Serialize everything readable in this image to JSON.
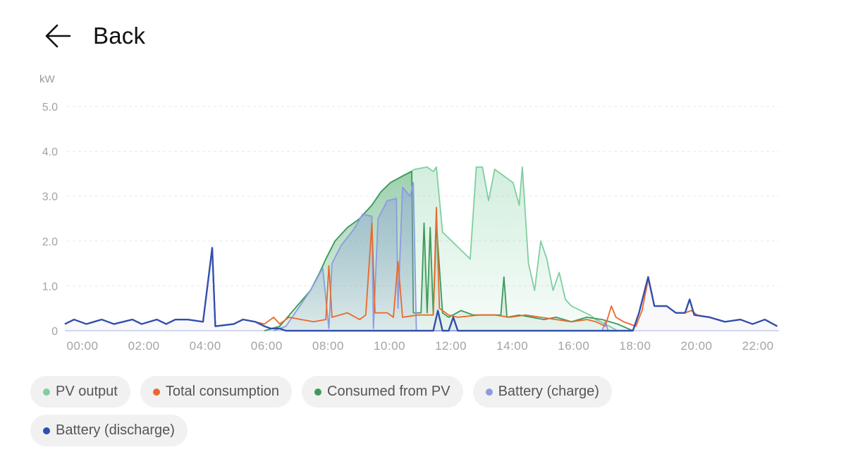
{
  "header": {
    "back_label": "Back",
    "back_icon": "arrow-left-icon"
  },
  "chart_data": {
    "type": "line",
    "title": "",
    "ylabel": "kW",
    "xlabel": "",
    "ylim": [
      0,
      5.0
    ],
    "xlim_hours": [
      0,
      23.3
    ],
    "y_ticks": [
      "0",
      "1.0",
      "2.0",
      "3.0",
      "4.0",
      "5.0"
    ],
    "x_ticks": [
      "00:00",
      "02:00",
      "04:00",
      "06:00",
      "08:00",
      "10:00",
      "12:00",
      "14:00",
      "16:00",
      "18:00",
      "20:00",
      "22:00"
    ],
    "grid": "horizontal dashed",
    "legend_position": "bottom",
    "series": [
      {
        "name": "PV output",
        "color": "#7fcfa0",
        "fill": true,
        "points": [
          [
            6.5,
            0
          ],
          [
            7,
            0.1
          ],
          [
            7.5,
            0.5
          ],
          [
            8,
            0.9
          ],
          [
            8.3,
            1.3
          ],
          [
            8.5,
            1.6
          ],
          [
            8.8,
            2.0
          ],
          [
            9.2,
            2.3
          ],
          [
            9.6,
            2.5
          ],
          [
            10,
            2.8
          ],
          [
            10.3,
            3.1
          ],
          [
            10.6,
            3.3
          ],
          [
            11,
            3.45
          ],
          [
            11.4,
            3.6
          ],
          [
            11.8,
            3.65
          ],
          [
            12.0,
            3.55
          ],
          [
            12.1,
            3.65
          ],
          [
            12.3,
            2.2
          ],
          [
            12.6,
            2.0
          ],
          [
            12.9,
            1.8
          ],
          [
            13.2,
            1.6
          ],
          [
            13.4,
            3.65
          ],
          [
            13.6,
            3.65
          ],
          [
            13.8,
            2.9
          ],
          [
            14.0,
            3.6
          ],
          [
            14.2,
            3.5
          ],
          [
            14.6,
            3.3
          ],
          [
            14.8,
            2.8
          ],
          [
            14.9,
            3.65
          ],
          [
            15.1,
            1.5
          ],
          [
            15.3,
            0.9
          ],
          [
            15.5,
            2.0
          ],
          [
            15.7,
            1.6
          ],
          [
            15.9,
            0.9
          ],
          [
            16.1,
            1.3
          ],
          [
            16.3,
            0.7
          ],
          [
            16.5,
            0.55
          ],
          [
            16.8,
            0.45
          ],
          [
            17.1,
            0.35
          ],
          [
            17.3,
            0.25
          ],
          [
            17.6,
            0.15
          ],
          [
            18.0,
            0
          ]
        ]
      },
      {
        "name": "Total consumption",
        "color": "#e8692e",
        "fill": false,
        "points": [
          [
            0,
            0.15
          ],
          [
            0.3,
            0.25
          ],
          [
            0.7,
            0.15
          ],
          [
            1.2,
            0.25
          ],
          [
            1.6,
            0.15
          ],
          [
            2.2,
            0.25
          ],
          [
            2.5,
            0.15
          ],
          [
            3.0,
            0.25
          ],
          [
            3.3,
            0.15
          ],
          [
            3.6,
            0.25
          ],
          [
            4.0,
            0.25
          ],
          [
            4.5,
            0.2
          ],
          [
            4.8,
            1.85
          ],
          [
            4.9,
            0.1
          ],
          [
            5.5,
            0.15
          ],
          [
            5.8,
            0.25
          ],
          [
            6.2,
            0.2
          ],
          [
            6.5,
            0.15
          ],
          [
            6.8,
            0.3
          ],
          [
            7.0,
            0.15
          ],
          [
            7.3,
            0.3
          ],
          [
            7.7,
            0.25
          ],
          [
            8.1,
            0.2
          ],
          [
            8.5,
            0.25
          ],
          [
            8.6,
            1.45
          ],
          [
            8.7,
            0.3
          ],
          [
            9.2,
            0.4
          ],
          [
            9.6,
            0.25
          ],
          [
            9.8,
            0.35
          ],
          [
            10.0,
            2.4
          ],
          [
            10.1,
            0.4
          ],
          [
            10.5,
            0.4
          ],
          [
            10.7,
            0.3
          ],
          [
            10.85,
            1.55
          ],
          [
            11.0,
            0.3
          ],
          [
            11.5,
            0.35
          ],
          [
            12.0,
            0.35
          ],
          [
            12.1,
            2.75
          ],
          [
            12.2,
            0.5
          ],
          [
            12.5,
            0.35
          ],
          [
            12.8,
            0.3
          ],
          [
            13.5,
            0.35
          ],
          [
            14.0,
            0.35
          ],
          [
            14.5,
            0.3
          ],
          [
            15.0,
            0.35
          ],
          [
            15.5,
            0.3
          ],
          [
            16.0,
            0.25
          ],
          [
            16.5,
            0.2
          ],
          [
            17.0,
            0.25
          ],
          [
            17.3,
            0.2
          ],
          [
            17.6,
            0.1
          ],
          [
            17.8,
            0.55
          ],
          [
            17.95,
            0.3
          ],
          [
            18.2,
            0.2
          ],
          [
            18.6,
            0.1
          ],
          [
            18.8,
            0.45
          ],
          [
            19.0,
            1.15
          ],
          [
            19.2,
            0.55
          ],
          [
            19.6,
            0.55
          ],
          [
            19.9,
            0.4
          ],
          [
            20.2,
            0.4
          ],
          [
            20.4,
            0.45
          ],
          [
            20.6,
            0.35
          ],
          [
            21.0,
            0.3
          ],
          [
            21.5,
            0.2
          ],
          [
            22.0,
            0.25
          ],
          [
            22.4,
            0.15
          ],
          [
            22.8,
            0.25
          ],
          [
            23.2,
            0.1
          ]
        ]
      },
      {
        "name": "Consumed from PV",
        "color": "#3d9a5a",
        "fill": true,
        "points": [
          [
            6.5,
            0
          ],
          [
            7,
            0.1
          ],
          [
            7.5,
            0.5
          ],
          [
            8,
            0.9
          ],
          [
            8.3,
            1.3
          ],
          [
            8.5,
            1.6
          ],
          [
            8.8,
            2.0
          ],
          [
            9.2,
            2.3
          ],
          [
            9.6,
            2.5
          ],
          [
            10,
            2.8
          ],
          [
            10.3,
            3.1
          ],
          [
            10.6,
            3.3
          ],
          [
            11,
            3.45
          ],
          [
            11.3,
            3.55
          ],
          [
            11.35,
            0.4
          ],
          [
            11.6,
            0.4
          ],
          [
            11.7,
            2.4
          ],
          [
            11.8,
            0.4
          ],
          [
            11.9,
            2.3
          ],
          [
            12.0,
            0.35
          ],
          [
            12.1,
            2.4
          ],
          [
            12.3,
            0.4
          ],
          [
            12.5,
            0.3
          ],
          [
            12.9,
            0.45
          ],
          [
            13.3,
            0.35
          ],
          [
            13.8,
            0.35
          ],
          [
            14.2,
            0.35
          ],
          [
            14.3,
            1.2
          ],
          [
            14.4,
            0.3
          ],
          [
            14.8,
            0.35
          ],
          [
            15.2,
            0.3
          ],
          [
            15.6,
            0.25
          ],
          [
            16.0,
            0.3
          ],
          [
            16.5,
            0.2
          ],
          [
            17.0,
            0.3
          ],
          [
            17.5,
            0.25
          ],
          [
            18.0,
            0.15
          ],
          [
            18.5,
            0
          ]
        ]
      },
      {
        "name": "Battery (charge)",
        "color": "#8c9be0",
        "fill": true,
        "points": [
          [
            6.8,
            0
          ],
          [
            7.2,
            0.1
          ],
          [
            7.6,
            0.5
          ],
          [
            8.0,
            0.9
          ],
          [
            8.4,
            1.4
          ],
          [
            8.6,
            0.05
          ],
          [
            8.7,
            1.5
          ],
          [
            9.0,
            1.9
          ],
          [
            9.4,
            2.25
          ],
          [
            9.7,
            2.6
          ],
          [
            10.0,
            2.55
          ],
          [
            10.05,
            0.05
          ],
          [
            10.2,
            2.5
          ],
          [
            10.5,
            2.9
          ],
          [
            10.8,
            2.95
          ],
          [
            10.85,
            0.5
          ],
          [
            11.0,
            3.2
          ],
          [
            11.25,
            3.0
          ],
          [
            11.35,
            3.3
          ],
          [
            11.45,
            0
          ],
          [
            12.0,
            0
          ],
          [
            17.5,
            0
          ],
          [
            17.6,
            0.2
          ],
          [
            17.7,
            0
          ]
        ]
      },
      {
        "name": "Battery (discharge)",
        "color": "#2f4fae",
        "fill": true,
        "points": [
          [
            0,
            0.15
          ],
          [
            0.3,
            0.25
          ],
          [
            0.7,
            0.15
          ],
          [
            1.2,
            0.25
          ],
          [
            1.6,
            0.15
          ],
          [
            2.2,
            0.25
          ],
          [
            2.5,
            0.15
          ],
          [
            3.0,
            0.25
          ],
          [
            3.3,
            0.15
          ],
          [
            3.6,
            0.25
          ],
          [
            4.0,
            0.25
          ],
          [
            4.5,
            0.2
          ],
          [
            4.8,
            1.85
          ],
          [
            4.9,
            0.1
          ],
          [
            5.5,
            0.15
          ],
          [
            5.8,
            0.25
          ],
          [
            6.2,
            0.2
          ],
          [
            6.5,
            0.1
          ],
          [
            6.7,
            0.05
          ],
          [
            7.0,
            0.05
          ],
          [
            7.2,
            0
          ],
          [
            12.0,
            0
          ],
          [
            12.15,
            0.45
          ],
          [
            12.3,
            0
          ],
          [
            12.5,
            0
          ],
          [
            12.65,
            0.3
          ],
          [
            12.8,
            0
          ],
          [
            18.2,
            0
          ],
          [
            18.5,
            0
          ],
          [
            18.7,
            0.4
          ],
          [
            19.0,
            1.2
          ],
          [
            19.2,
            0.55
          ],
          [
            19.6,
            0.55
          ],
          [
            19.9,
            0.4
          ],
          [
            20.2,
            0.4
          ],
          [
            20.35,
            0.7
          ],
          [
            20.5,
            0.35
          ],
          [
            21.0,
            0.3
          ],
          [
            21.5,
            0.2
          ],
          [
            22.0,
            0.25
          ],
          [
            22.4,
            0.15
          ],
          [
            22.8,
            0.25
          ],
          [
            23.2,
            0.1
          ]
        ]
      }
    ]
  },
  "legend": {
    "items": [
      {
        "label": "PV output",
        "color": "#7fcfa0"
      },
      {
        "label": "Total consumption",
        "color": "#e8692e"
      },
      {
        "label": "Consumed from PV",
        "color": "#3d9a5a"
      },
      {
        "label": "Battery (charge)",
        "color": "#8c9be0"
      },
      {
        "label": "Battery (discharge)",
        "color": "#2f4fae"
      }
    ]
  }
}
